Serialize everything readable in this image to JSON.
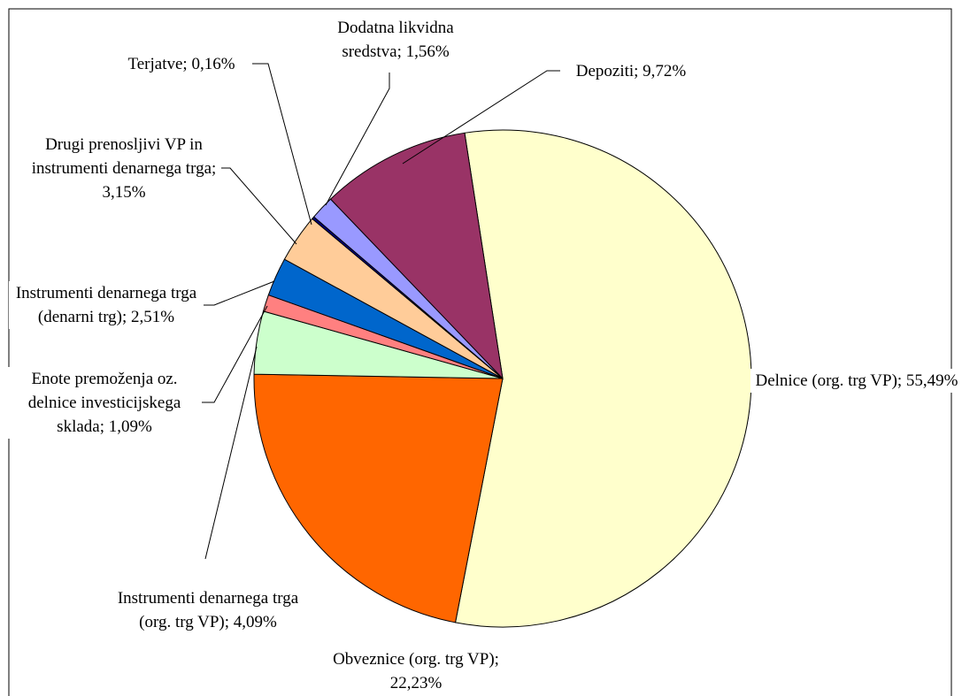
{
  "chart_data": {
    "type": "pie",
    "values": [
      55.49,
      22.23,
      4.09,
      1.09,
      2.51,
      3.15,
      0.16,
      1.56,
      9.72
    ],
    "value_labels": [
      "Delnice (org. trg VP); 55,49%",
      "Obveznice (org. trg VP); 22,23%",
      "Instrumenti denarnega trga (org. trg VP); 4,09%",
      "Enote premoženja oz. delnice investicijskega sklada; 1,09%",
      "Instrumenti denarnega trga (denarni trg); 2,51%",
      "Drugi prenosljivi VP in instrumenti denarnega trga; 3,15%",
      "Terjatve; 0,16%",
      "Dodatna likvidna sredstva; 1,56%",
      "Depoziti; 9,72%"
    ],
    "colors": [
      "#FFFFCC",
      "#FF6600",
      "#CCFFCC",
      "#FF8080",
      "#0066CC",
      "#FFCC99",
      "#000080",
      "#9999FF",
      "#993366"
    ]
  }
}
